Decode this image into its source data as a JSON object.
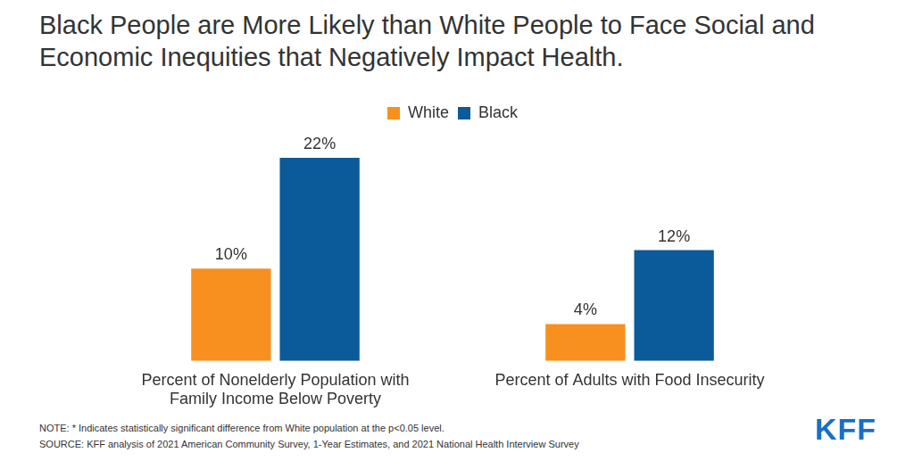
{
  "chart_data": {
    "type": "bar",
    "title": "Black People are More Likely than White People to Face Social and Economic Inequities that Negatively Impact Health.",
    "categories": [
      "Percent of Nonelderly Population with Family Income Below Poverty",
      "Percent of Adults with Food Insecurity"
    ],
    "series": [
      {
        "name": "White",
        "color": "#f7901e",
        "values": [
          10,
          4
        ],
        "value_labels": [
          "10%",
          "4%"
        ]
      },
      {
        "name": "Black",
        "color": "#0b5a99",
        "values": [
          22,
          12
        ],
        "value_labels": [
          "22%",
          "12%"
        ]
      }
    ],
    "ylim": [
      0,
      25
    ],
    "grid": false,
    "legend": "top",
    "data_labels": true,
    "tick_labels": "x",
    "note": "NOTE: * Indicates statistically significant difference from White population at the p<0.05 level.",
    "source": "SOURCE: KFF analysis of 2021 American Community Survey, 1-Year Estimates, and 2021 National Health Interview Survey",
    "logo": "KFF"
  }
}
